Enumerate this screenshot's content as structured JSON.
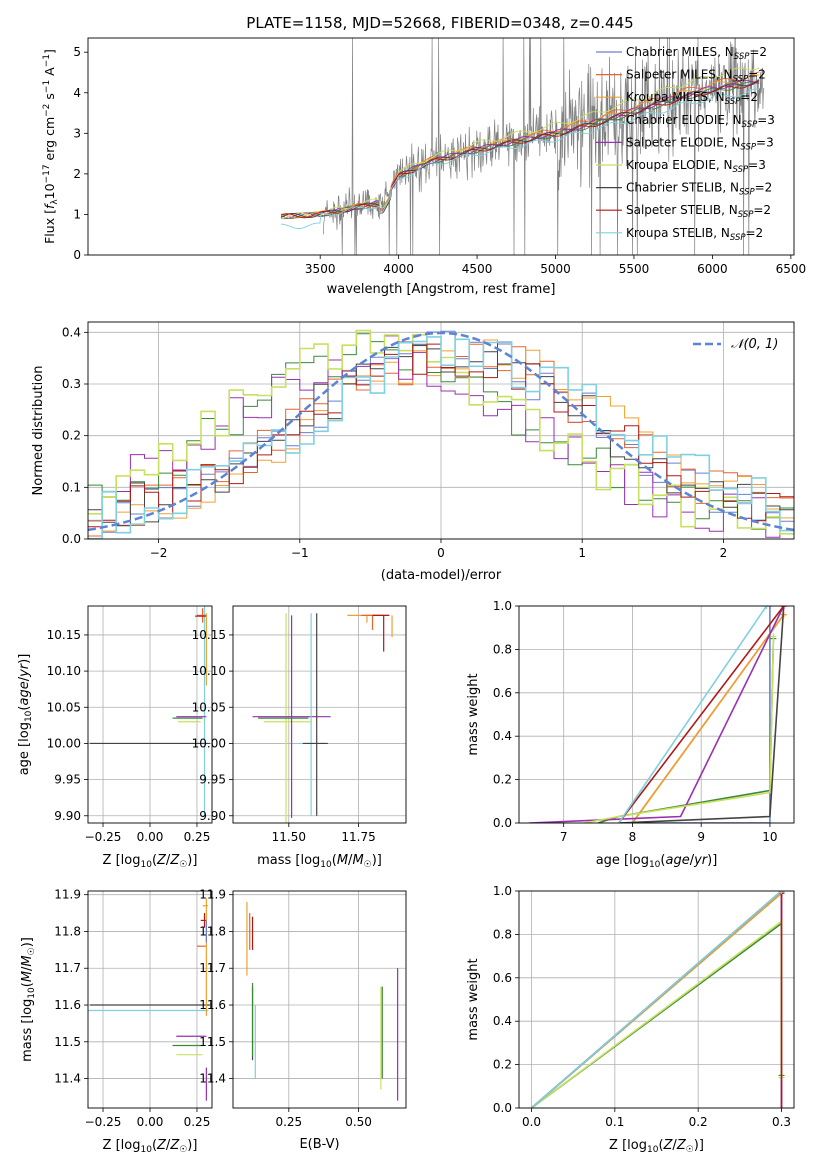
{
  "title": "PLATE=1158, MJD=52668, FIBERID=0348, z=0.445",
  "colors": {
    "Chabrier MILES": "#6a7fd0",
    "Salpeter MILES": "#e8642c",
    "Kroupa MILES": "#f0a030",
    "Chabrier ELODIE": "#3a8a3a",
    "Salpeter ELODIE": "#9a30b0",
    "Kroupa ELODIE": "#c8e060",
    "Chabrier STELIB": "#444444",
    "Salpeter STELIB": "#b01818",
    "Kroupa STELIB": "#80d0e0",
    "data": "#808080",
    "normal": "#5b83d6"
  },
  "chart_data": [
    {
      "id": "spectrum",
      "type": "line",
      "xlabel": "wavelength [Angstrom, rest frame]",
      "ylabel": "Flux [f_λ 10^-17 erg cm^-2 s^-1 A^-1]",
      "xlim": [
        2020,
        6520
      ],
      "ylim": [
        0,
        5.35
      ],
      "xticks": [
        3500,
        4000,
        4500,
        5000,
        5500,
        6000,
        6500
      ],
      "yticks": [
        0,
        1,
        2,
        3,
        4,
        5
      ],
      "legend": [
        "Chabrier MILES, N_SSP=2",
        "Salpeter MILES, N_SSP=2",
        "Kroupa MILES, N_SSP=2",
        "Chabrier ELODIE, N_SSP=3",
        "Salpeter ELODIE, N_SSP=3",
        "Kroupa ELODIE, N_SSP=3",
        "Chabrier STELIB, N_SSP=2",
        "Salpeter STELIB, N_SSP=2",
        "Kroupa STELIB, N_SSP=2"
      ],
      "continuum": {
        "x": [
          3250,
          3500,
          3700,
          3900,
          4000,
          4200,
          4500,
          4800,
          5000,
          5200,
          5500,
          5800,
          6000,
          6300
        ],
        "y": [
          0.95,
          1.0,
          1.15,
          1.3,
          1.95,
          2.3,
          2.6,
          2.85,
          3.0,
          3.2,
          3.55,
          3.9,
          4.1,
          4.3
        ]
      }
    },
    {
      "id": "residuals",
      "type": "histogram",
      "xlabel": "(data-model)/error",
      "ylabel": "Normed distribution",
      "xlim": [
        -2.5,
        2.5
      ],
      "ylim": [
        0,
        0.42
      ],
      "xticks": [
        -2,
        -1,
        0,
        1,
        2
      ],
      "yticks": [
        0.0,
        0.1,
        0.2,
        0.3,
        0.4
      ],
      "legend": "𝒩(0, 1)"
    },
    {
      "id": "age_vs_Z",
      "type": "scatter",
      "xlabel": "Z [log10(Z/Z⊙)]",
      "ylabel": "age [log10(age/yr)]",
      "xlim": [
        -0.33,
        0.33
      ],
      "ylim": [
        9.89,
        10.19
      ],
      "xticks": [
        -0.25,
        0.0,
        0.25
      ],
      "yticks": [
        9.9,
        9.95,
        10.0,
        10.05,
        10.1,
        10.15
      ]
    },
    {
      "id": "age_vs_mass",
      "type": "scatter",
      "xlabel": "mass [log10(M/M⊙)]",
      "ylabel": "",
      "xlim": [
        11.3,
        11.92
      ],
      "ylim": [
        9.89,
        10.19
      ],
      "xticks": [
        11.5,
        11.75
      ],
      "yticks": [
        9.9,
        9.95,
        10.0,
        10.05,
        10.1,
        10.15
      ]
    },
    {
      "id": "cumweight_age",
      "type": "line",
      "xlabel": "age [log10(age/yr)]",
      "ylabel": "mass weight",
      "xlim": [
        6.35,
        10.35
      ],
      "ylim": [
        0,
        1
      ],
      "xticks": [
        7,
        8,
        9,
        10
      ],
      "yticks": [
        0.0,
        0.2,
        0.4,
        0.6,
        0.8,
        1.0
      ],
      "series": [
        {
          "model": "Chabrier MILES",
          "x": [
            7.8,
            10.0,
            10.0
          ],
          "y": [
            0,
            0,
            1.0
          ]
        },
        {
          "model": "Salpeter MILES",
          "x": [
            8.0,
            10.2
          ],
          "y": [
            0,
            0.96
          ]
        },
        {
          "model": "Kroupa MILES",
          "x": [
            8.0,
            10.2
          ],
          "y": [
            0,
            0.96
          ]
        },
        {
          "model": "Chabrier ELODIE",
          "x": [
            7.5,
            7.8,
            10.0,
            10.05
          ],
          "y": [
            0,
            0.03,
            0.15,
            0.85
          ]
        },
        {
          "model": "Salpeter ELODIE",
          "x": [
            6.5,
            8.7,
            10.2
          ],
          "y": [
            0,
            0.03,
            1.0
          ]
        },
        {
          "model": "Kroupa ELODIE",
          "x": [
            7.3,
            7.8,
            10.0,
            10.05
          ],
          "y": [
            0,
            0.03,
            0.14,
            0.86
          ]
        },
        {
          "model": "Chabrier STELIB",
          "x": [
            7.8,
            10.0,
            10.2
          ],
          "y": [
            0,
            0.03,
            1.0
          ]
        },
        {
          "model": "Salpeter STELIB",
          "x": [
            7.8,
            10.2
          ],
          "y": [
            0,
            1.0
          ]
        },
        {
          "model": "Kroupa STELIB",
          "x": [
            7.8,
            9.95
          ],
          "y": [
            0,
            1.0
          ]
        }
      ]
    },
    {
      "id": "mass_vs_Z",
      "type": "scatter",
      "xlabel": "Z [log10(Z/Z⊙)]",
      "ylabel": "mass [log10(M/M⊙)]",
      "xlim": [
        -0.33,
        0.33
      ],
      "ylim": [
        11.32,
        11.91
      ],
      "xticks": [
        -0.25,
        0.0,
        0.25
      ],
      "yticks": [
        11.4,
        11.5,
        11.6,
        11.7,
        11.8,
        11.9
      ]
    },
    {
      "id": "mass_vs_EBV",
      "type": "scatter",
      "xlabel": "E(B-V)",
      "ylabel": "",
      "xlim": [
        0.05,
        0.67
      ],
      "ylim": [
        11.32,
        11.91
      ],
      "xticks": [
        0.25,
        0.5
      ],
      "yticks": [
        11.4,
        11.5,
        11.6,
        11.7,
        11.8,
        11.9
      ]
    },
    {
      "id": "cumweight_Z",
      "type": "line",
      "xlabel": "Z [log10(Z/Z⊙)]",
      "ylabel": "mass weight",
      "xlim": [
        -0.015,
        0.315
      ],
      "ylim": [
        0,
        1
      ],
      "xticks": [
        0.0,
        0.1,
        0.2,
        0.3
      ],
      "yticks": [
        0.0,
        0.2,
        0.4,
        0.6,
        0.8,
        1.0
      ],
      "series": [
        {
          "model": "Chabrier MILES",
          "x": [
            0.0,
            0.3
          ],
          "y": [
            0,
            1.0
          ]
        },
        {
          "model": "Salpeter MILES",
          "x": [
            0.0,
            0.3
          ],
          "y": [
            0,
            0.99
          ]
        },
        {
          "model": "Kroupa MILES",
          "x": [
            0.0,
            0.3
          ],
          "y": [
            0,
            0.99
          ]
        },
        {
          "model": "Chabrier ELODIE",
          "x": [
            0.0,
            0.3,
            0.3
          ],
          "y": [
            0,
            0.85,
            0.15
          ]
        },
        {
          "model": "Salpeter ELODIE",
          "x": [
            0.3,
            0.3
          ],
          "y": [
            0,
            0.99
          ]
        },
        {
          "model": "Kroupa ELODIE",
          "x": [
            0.0,
            0.3,
            0.3
          ],
          "y": [
            0,
            0.86,
            0.14
          ]
        },
        {
          "model": "Chabrier STELIB",
          "x": [
            0.0,
            0.3
          ],
          "y": [
            0,
            1.0
          ]
        },
        {
          "model": "Salpeter STELIB",
          "x": [
            0.3,
            0.3
          ],
          "y": [
            0,
            0.99
          ]
        },
        {
          "model": "Kroupa STELIB",
          "x": [
            0.0,
            0.3
          ],
          "y": [
            0,
            1.0
          ]
        }
      ]
    }
  ]
}
